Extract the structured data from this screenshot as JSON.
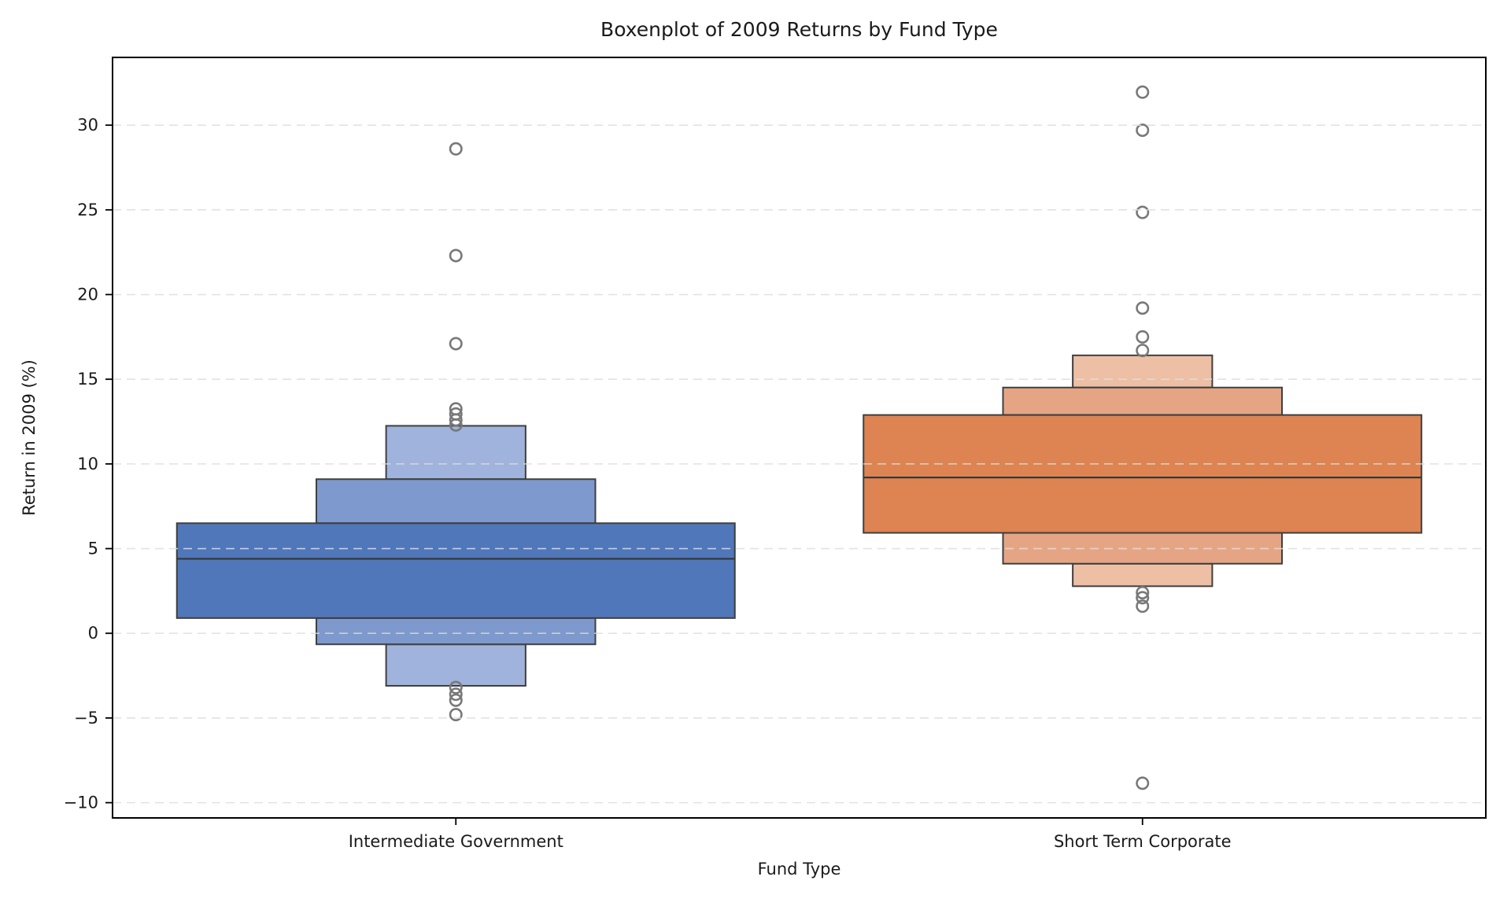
{
  "title": "Boxenplot of 2009 Returns by Fund Type",
  "xlabel": "Fund Type",
  "ylabel": "Return in 2009 (%)",
  "chart_data": {
    "type": "boxen",
    "title": "Boxenplot of 2009 Returns by Fund Type",
    "xlabel": "Fund Type",
    "ylabel": "Return in 2009 (%)",
    "categories": [
      "Intermediate Government",
      "Short Term Corporate"
    ],
    "ylim": [
      -10.9,
      34.0
    ],
    "yticks": [
      -10,
      -5,
      0,
      5,
      10,
      15,
      20,
      25,
      30
    ],
    "grid": "horizontal-dashed",
    "legend": "none",
    "series": [
      {
        "name": "Intermediate Government",
        "median": 4.4,
        "levels": [
          {
            "low": 0.9,
            "high": 6.5,
            "rel_width": 1.0
          },
          {
            "low": -0.65,
            "high": 9.1,
            "rel_width": 0.5
          },
          {
            "low": -3.1,
            "high": 12.25,
            "rel_width": 0.25
          }
        ],
        "outliers_high": [
          12.3,
          12.6,
          12.95,
          13.25,
          17.1,
          22.3,
          28.6
        ],
        "outliers_low": [
          -3.2,
          -3.6,
          -3.95,
          -4.8
        ],
        "level_colors": [
          "#5077B9",
          "#7E99CD",
          "#9FB3DC"
        ]
      },
      {
        "name": "Short Term Corporate",
        "median": 9.2,
        "levels": [
          {
            "low": 5.93,
            "high": 12.89,
            "rel_width": 1.0
          },
          {
            "low": 4.11,
            "high": 14.51,
            "rel_width": 0.5
          },
          {
            "low": 2.78,
            "high": 16.41,
            "rel_width": 0.25
          }
        ],
        "outliers_high": [
          16.7,
          17.5,
          19.2,
          24.85,
          29.7,
          31.95
        ],
        "outliers_low": [
          2.4,
          2.1,
          1.6,
          -8.85
        ],
        "level_colors": [
          "#DD8452",
          "#E5A585",
          "#EDBFA4"
        ]
      }
    ]
  },
  "styles": {
    "grid_color": "#dedede",
    "spine_color": "#000000",
    "box_edge_color": "#3f3f3f",
    "median_color": "#383838",
    "outlier_color": "#787878",
    "text_color": "#1a1a1a"
  }
}
